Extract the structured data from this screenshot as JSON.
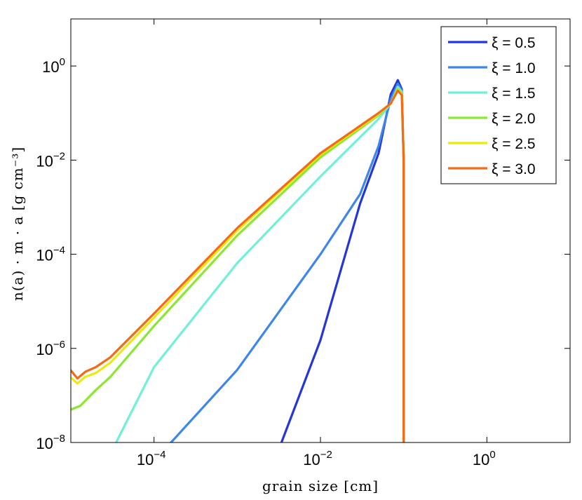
{
  "chart_data": {
    "type": "line",
    "xscale": "log",
    "yscale": "log",
    "xlim": [
      1e-05,
      10
    ],
    "ylim": [
      1e-08,
      10
    ],
    "xlabel": "grain size [cm]",
    "ylabel": "n(a) · m · a [g cm⁻³]",
    "xticks": [
      {
        "value": 0.0001,
        "base": "10",
        "exp": "−4"
      },
      {
        "value": 0.01,
        "base": "10",
        "exp": "−2"
      },
      {
        "value": 1,
        "base": "10",
        "exp": "0"
      }
    ],
    "yticks": [
      {
        "value": 1e-08,
        "base": "10",
        "exp": "−8"
      },
      {
        "value": 1e-06,
        "base": "10",
        "exp": "−6"
      },
      {
        "value": 0.0001,
        "base": "10",
        "exp": "−4"
      },
      {
        "value": 0.01,
        "base": "10",
        "exp": "−2"
      },
      {
        "value": 1,
        "base": "10",
        "exp": "0"
      }
    ],
    "legend_position": "top-right",
    "grid": false,
    "series": [
      {
        "name": "ξ = 0.5",
        "color": "#2436d8",
        "x": [
          0.0034,
          0.01,
          0.03,
          0.05,
          0.07,
          0.085,
          0.095,
          0.1,
          0.1
        ],
        "y": [
          1e-08,
          1.5e-06,
          0.0012,
          0.014,
          0.25,
          0.5,
          0.32,
          0.01,
          1e-08
        ]
      },
      {
        "name": "ξ = 1.0",
        "color": "#3d86ea",
        "x": [
          0.00016,
          0.001,
          0.01,
          0.03,
          0.05,
          0.07,
          0.085,
          0.095,
          0.1,
          0.1
        ],
        "y": [
          1e-08,
          3.5e-07,
          0.0001,
          0.0019,
          0.02,
          0.2,
          0.42,
          0.3,
          0.01,
          1e-08
        ]
      },
      {
        "name": "ξ = 1.5",
        "color": "#70f0d8",
        "x": [
          3.5e-05,
          0.0001,
          0.001,
          0.01,
          0.05,
          0.07,
          0.085,
          0.095,
          0.1,
          0.1
        ],
        "y": [
          1e-08,
          4e-07,
          6.5e-05,
          0.0045,
          0.075,
          0.16,
          0.36,
          0.28,
          0.01,
          1e-08
        ]
      },
      {
        "name": "ξ = 2.0",
        "color": "#8ae830",
        "x": [
          1e-05,
          1.3e-05,
          2e-05,
          3e-05,
          0.0001,
          0.001,
          0.01,
          0.05,
          0.07,
          0.085,
          0.095,
          0.1,
          0.1
        ],
        "y": [
          5e-08,
          6e-08,
          1.3e-07,
          2.5e-07,
          3e-06,
          0.00025,
          0.0115,
          0.09,
          0.16,
          0.33,
          0.26,
          0.01,
          1e-08
        ]
      },
      {
        "name": "ξ = 2.5",
        "color": "#ecea0c",
        "x": [
          1e-05,
          1.2e-05,
          1.5e-05,
          2e-05,
          3e-05,
          0.0001,
          0.001,
          0.01,
          0.05,
          0.07,
          0.085,
          0.095,
          0.1,
          0.1
        ],
        "y": [
          2.4e-07,
          1.8e-07,
          2.5e-07,
          3e-07,
          5e-07,
          4.5e-06,
          0.00032,
          0.013,
          0.095,
          0.16,
          0.31,
          0.25,
          0.01,
          1e-08
        ]
      },
      {
        "name": "ξ = 3.0",
        "color": "#f46a18",
        "x": [
          1e-05,
          1.2e-05,
          1.5e-05,
          2e-05,
          3e-05,
          0.0001,
          0.001,
          0.01,
          0.05,
          0.07,
          0.085,
          0.095,
          0.1,
          0.1
        ],
        "y": [
          3.4e-07,
          2.3e-07,
          3.2e-07,
          4e-07,
          6.5e-07,
          5.5e-06,
          0.00036,
          0.014,
          0.1,
          0.16,
          0.3,
          0.24,
          0.01,
          1e-08
        ]
      }
    ]
  }
}
